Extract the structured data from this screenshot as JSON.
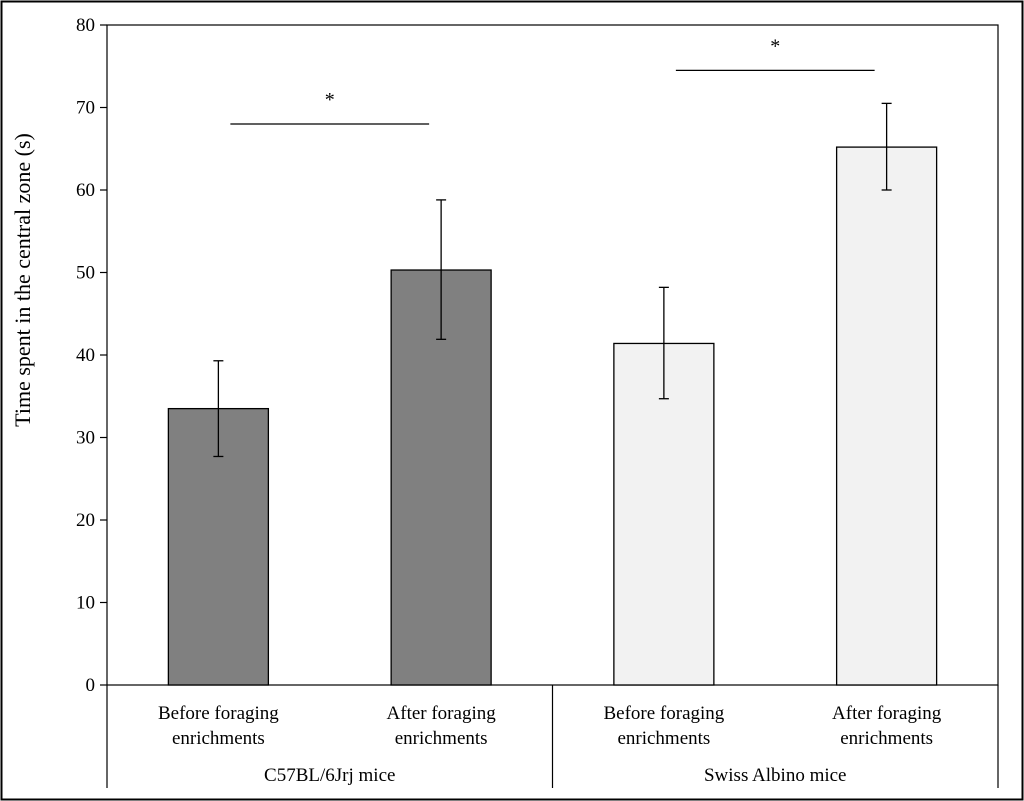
{
  "chart_data": {
    "type": "bar",
    "ylabel": "Time spent in the central zone (s)",
    "ylim": [
      0,
      80
    ],
    "yticks": [
      "0",
      "10",
      "20",
      "30",
      "40",
      "50",
      "60",
      "70",
      "80"
    ],
    "categories": [
      [
        "Before foraging",
        "enrichments"
      ],
      [
        "After foraging",
        "enrichments"
      ],
      [
        "Before foraging",
        "enrichments"
      ],
      [
        "After foraging",
        "enrichments"
      ]
    ],
    "groups": [
      {
        "label": "C57BL/6Jrj mice",
        "bars": [
          0,
          1
        ]
      },
      {
        "label": "Swiss Albino mice",
        "bars": [
          2,
          3
        ]
      }
    ],
    "values": [
      33.5,
      50.3,
      41.4,
      65.2
    ],
    "error_low": [
      27.7,
      41.9,
      34.7,
      60.0
    ],
    "error_high": [
      39.3,
      58.8,
      48.2,
      70.5
    ],
    "bar_colors": [
      "#808080",
      "#808080",
      "#f2f2f2",
      "#f2f2f2"
    ],
    "significance": [
      {
        "from": 0,
        "to": 1,
        "level": 68,
        "label": "*"
      },
      {
        "from": 2,
        "to": 3,
        "level": 74.5,
        "label": "*"
      }
    ],
    "grid": false
  }
}
